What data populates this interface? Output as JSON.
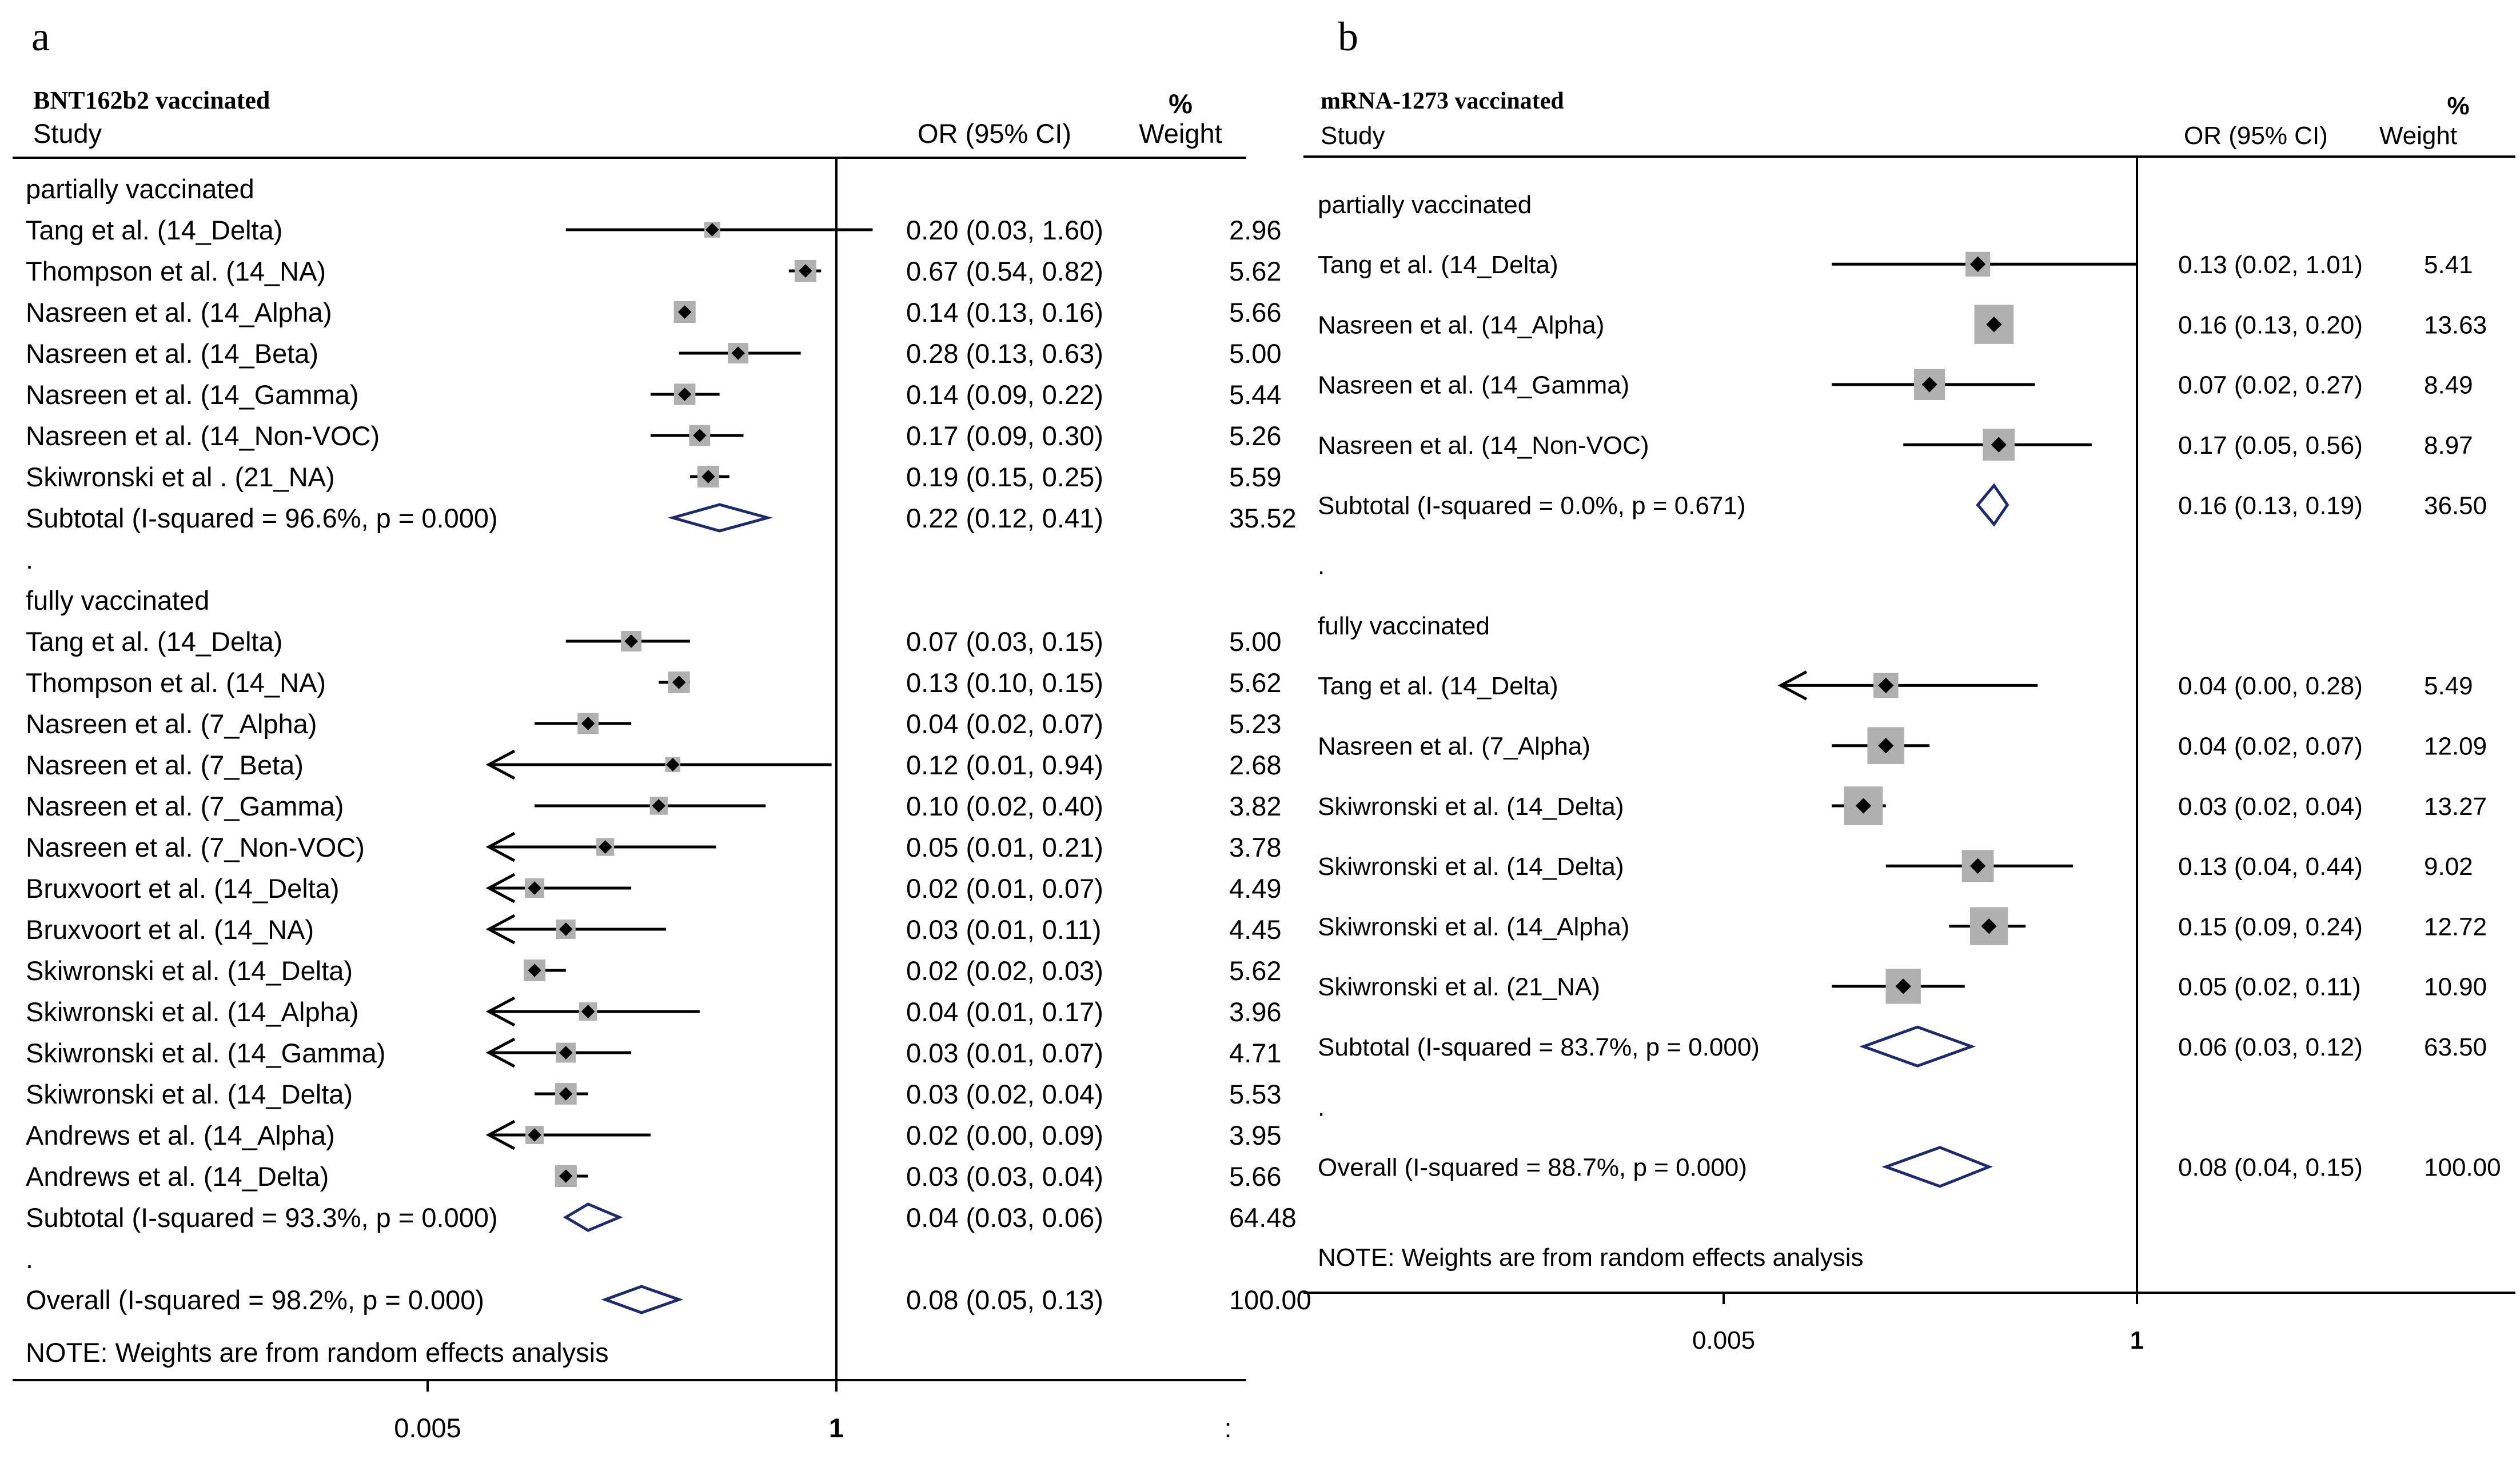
{
  "chart_data": [
    {
      "type": "forest",
      "panel_label": "a",
      "title": "BNT162b2 vaccinated",
      "header": {
        "study": "Study",
        "or": "OR (95% CI)",
        "weight_pct": "%",
        "weight": "Weight"
      },
      "axis": {
        "ticks": [
          {
            "label": "0.005",
            "value": 0.005
          },
          {
            "label": "1",
            "value": 1
          }
        ],
        "extra_tick_label": ":",
        "reference_line": 1
      },
      "rows": [
        {
          "kind": "group",
          "label": "partially vaccinated"
        },
        {
          "kind": "study",
          "label": "Tang et al. (14_Delta)",
          "or": 0.2,
          "lo": 0.03,
          "hi": 1.6,
          "ci_text": "0.20 (0.03, 1.60)",
          "weight": "2.96"
        },
        {
          "kind": "study",
          "label": "Thompson et al. (14_NA)",
          "or": 0.67,
          "lo": 0.54,
          "hi": 0.82,
          "ci_text": "0.67 (0.54, 0.82)",
          "weight": "5.62"
        },
        {
          "kind": "study",
          "label": "Nasreen et al. (14_Alpha)",
          "or": 0.14,
          "lo": 0.13,
          "hi": 0.16,
          "ci_text": "0.14 (0.13, 0.16)",
          "weight": "5.66"
        },
        {
          "kind": "study",
          "label": "Nasreen et al. (14_Beta)",
          "or": 0.28,
          "lo": 0.13,
          "hi": 0.63,
          "ci_text": "0.28 (0.13, 0.63)",
          "weight": "5.00"
        },
        {
          "kind": "study",
          "label": "Nasreen et al. (14_Gamma)",
          "or": 0.14,
          "lo": 0.09,
          "hi": 0.22,
          "ci_text": "0.14 (0.09, 0.22)",
          "weight": "5.44"
        },
        {
          "kind": "study",
          "label": "Nasreen et al. (14_Non-VOC)",
          "or": 0.17,
          "lo": 0.09,
          "hi": 0.3,
          "ci_text": "0.17 (0.09, 0.30)",
          "weight": "5.26"
        },
        {
          "kind": "study",
          "label": "Skiwronski et al . (21_NA)",
          "or": 0.19,
          "lo": 0.15,
          "hi": 0.25,
          "ci_text": "0.19 (0.15, 0.25)",
          "weight": "5.59"
        },
        {
          "kind": "subtotal",
          "label": "Subtotal  (I-squared = 96.6%, p = 0.000)",
          "or": 0.22,
          "lo": 0.12,
          "hi": 0.41,
          "ci_text": "0.22 (0.12, 0.41)",
          "weight": "35.52"
        },
        {
          "kind": "dot",
          "label": "."
        },
        {
          "kind": "group",
          "label": "fully vaccinated"
        },
        {
          "kind": "study",
          "label": "Tang et al. (14_Delta)",
          "or": 0.07,
          "lo": 0.03,
          "hi": 0.15,
          "ci_text": "0.07 (0.03, 0.15)",
          "weight": "5.00"
        },
        {
          "kind": "study",
          "label": "Thompson et al. (14_NA)",
          "or": 0.13,
          "lo": 0.1,
          "hi": 0.15,
          "ci_text": "0.13 (0.10, 0.15)",
          "weight": "5.62"
        },
        {
          "kind": "study",
          "label": "Nasreen et al. (7_Alpha)",
          "or": 0.04,
          "lo": 0.02,
          "hi": 0.07,
          "ci_text": "0.04 (0.02, 0.07)",
          "weight": "5.23"
        },
        {
          "kind": "study",
          "label": "Nasreen et al. (7_Beta)",
          "or": 0.12,
          "lo": 0.01,
          "hi": 0.94,
          "ci_text": "0.12 (0.01, 0.94)",
          "weight": "2.68"
        },
        {
          "kind": "study",
          "label": "Nasreen et al. (7_Gamma)",
          "or": 0.1,
          "lo": 0.02,
          "hi": 0.4,
          "ci_text": "0.10 (0.02, 0.40)",
          "weight": "3.82"
        },
        {
          "kind": "study",
          "label": "Nasreen et al. (7_Non-VOC)",
          "or": 0.05,
          "lo": 0.01,
          "hi": 0.21,
          "ci_text": "0.05 (0.01, 0.21)",
          "weight": "3.78"
        },
        {
          "kind": "study",
          "label": "Bruxvoort et al. (14_Delta)",
          "or": 0.02,
          "lo": 0.01,
          "hi": 0.07,
          "ci_text": "0.02 (0.01, 0.07)",
          "weight": "4.49"
        },
        {
          "kind": "study",
          "label": "Bruxvoort et al. (14_NA)",
          "or": 0.03,
          "lo": 0.01,
          "hi": 0.11,
          "ci_text": "0.03 (0.01, 0.11)",
          "weight": "4.45"
        },
        {
          "kind": "study",
          "label": "Skiwronski et al. (14_Delta)",
          "or": 0.02,
          "lo": 0.02,
          "hi": 0.03,
          "ci_text": "0.02 (0.02, 0.03)",
          "weight": "5.62"
        },
        {
          "kind": "study",
          "label": "Skiwronski et al. (14_Alpha)",
          "or": 0.04,
          "lo": 0.01,
          "hi": 0.17,
          "ci_text": "0.04 (0.01, 0.17)",
          "weight": "3.96"
        },
        {
          "kind": "study",
          "label": "Skiwronski et al. (14_Gamma)",
          "or": 0.03,
          "lo": 0.01,
          "hi": 0.07,
          "ci_text": "0.03 (0.01, 0.07)",
          "weight": "4.71"
        },
        {
          "kind": "study",
          "label": "Skiwronski et al. (14_Delta)",
          "or": 0.03,
          "lo": 0.02,
          "hi": 0.04,
          "ci_text": "0.03 (0.02, 0.04)",
          "weight": "5.53"
        },
        {
          "kind": "study",
          "label": "Andrews et al. (14_Alpha)",
          "or": 0.02,
          "lo": 0.0,
          "hi": 0.09,
          "ci_text": "0.02 (0.00, 0.09)",
          "weight": "3.95",
          "arrow_left": true
        },
        {
          "kind": "study",
          "label": "Andrews et al. (14_Delta)",
          "or": 0.03,
          "lo": 0.03,
          "hi": 0.04,
          "ci_text": "0.03 (0.03, 0.04)",
          "weight": "5.66"
        },
        {
          "kind": "subtotal",
          "label": "Subtotal  (I-squared = 93.3%, p = 0.000)",
          "or": 0.04,
          "lo": 0.03,
          "hi": 0.06,
          "ci_text": "0.04 (0.03, 0.06)",
          "weight": "64.48"
        },
        {
          "kind": "dot",
          "label": "."
        },
        {
          "kind": "overall",
          "label": "Overall  (I-squared = 98.2%, p = 0.000)",
          "or": 0.08,
          "lo": 0.05,
          "hi": 0.13,
          "ci_text": "0.08 (0.05, 0.13)",
          "weight": "100.00"
        }
      ],
      "note": "NOTE: Weights are from random effects analysis"
    },
    {
      "type": "forest",
      "panel_label": "b",
      "title": "mRNA-1273 vaccinated",
      "header": {
        "study": "Study",
        "or": "OR (95% CI)",
        "weight_pct": "%",
        "weight": "Weight"
      },
      "axis": {
        "ticks": [
          {
            "label": "0.005",
            "value": 0.005
          },
          {
            "label": "1",
            "value": 1
          }
        ],
        "reference_line": 1
      },
      "rows": [
        {
          "kind": "group",
          "label": "partially vaccinated"
        },
        {
          "kind": "study",
          "label": "Tang et al. (14_Delta)",
          "or": 0.13,
          "lo": 0.02,
          "hi": 1.01,
          "ci_text": "0.13 (0.02, 1.01)",
          "weight": "5.41"
        },
        {
          "kind": "study",
          "label": "Nasreen et al. (14_Alpha)",
          "or": 0.16,
          "lo": 0.13,
          "hi": 0.2,
          "ci_text": "0.16 (0.13, 0.20)",
          "weight": "13.63"
        },
        {
          "kind": "study",
          "label": "Nasreen et al. (14_Gamma)",
          "or": 0.07,
          "lo": 0.02,
          "hi": 0.27,
          "ci_text": "0.07 (0.02, 0.27)",
          "weight": "8.49"
        },
        {
          "kind": "study",
          "label": "Nasreen et al. (14_Non-VOC)",
          "or": 0.17,
          "lo": 0.05,
          "hi": 0.56,
          "ci_text": "0.17 (0.05, 0.56)",
          "weight": "8.97"
        },
        {
          "kind": "subtotal",
          "label": "Subtotal  (I-squared = 0.0%, p = 0.671)",
          "or": 0.16,
          "lo": 0.13,
          "hi": 0.19,
          "ci_text": "0.16 (0.13, 0.19)",
          "weight": "36.50"
        },
        {
          "kind": "dot",
          "label": "."
        },
        {
          "kind": "group",
          "label": "fully vaccinated"
        },
        {
          "kind": "study",
          "label": "Tang et al. (14_Delta)",
          "or": 0.04,
          "lo": 0.0,
          "hi": 0.28,
          "ci_text": "0.04 (0.00, 0.28)",
          "weight": "5.49",
          "arrow_left": true
        },
        {
          "kind": "study",
          "label": "Nasreen et al. (7_Alpha)",
          "or": 0.04,
          "lo": 0.02,
          "hi": 0.07,
          "ci_text": "0.04 (0.02, 0.07)",
          "weight": "12.09"
        },
        {
          "kind": "study",
          "label": "Skiwronski et al. (14_Delta)",
          "or": 0.03,
          "lo": 0.02,
          "hi": 0.04,
          "ci_text": "0.03 (0.02, 0.04)",
          "weight": "13.27"
        },
        {
          "kind": "study",
          "label": "Skiwronski et al. (14_Delta)",
          "or": 0.13,
          "lo": 0.04,
          "hi": 0.44,
          "ci_text": "0.13 (0.04, 0.44)",
          "weight": "9.02"
        },
        {
          "kind": "study",
          "label": "Skiwronski et al. (14_Alpha)",
          "or": 0.15,
          "lo": 0.09,
          "hi": 0.24,
          "ci_text": "0.15 (0.09, 0.24)",
          "weight": "12.72"
        },
        {
          "kind": "study",
          "label": "Skiwronski et al. (21_NA)",
          "or": 0.05,
          "lo": 0.02,
          "hi": 0.11,
          "ci_text": "0.05 (0.02, 0.11)",
          "weight": "10.90"
        },
        {
          "kind": "subtotal",
          "label": "Subtotal  (I-squared = 83.7%, p = 0.000)",
          "or": 0.06,
          "lo": 0.03,
          "hi": 0.12,
          "ci_text": "0.06 (0.03, 0.12)",
          "weight": "63.50"
        },
        {
          "kind": "dot",
          "label": "."
        },
        {
          "kind": "overall",
          "label": "Overall  (I-squared = 88.7%, p = 0.000)",
          "or": 0.08,
          "lo": 0.04,
          "hi": 0.15,
          "ci_text": "0.08 (0.04, 0.15)",
          "weight": "100.00"
        }
      ],
      "note": "NOTE: Weights are from random effects analysis"
    }
  ],
  "colors": {
    "diamond": "#1f2a6b",
    "box": "#b0b0b0",
    "line": "#000000",
    "background": "#ffffff"
  }
}
